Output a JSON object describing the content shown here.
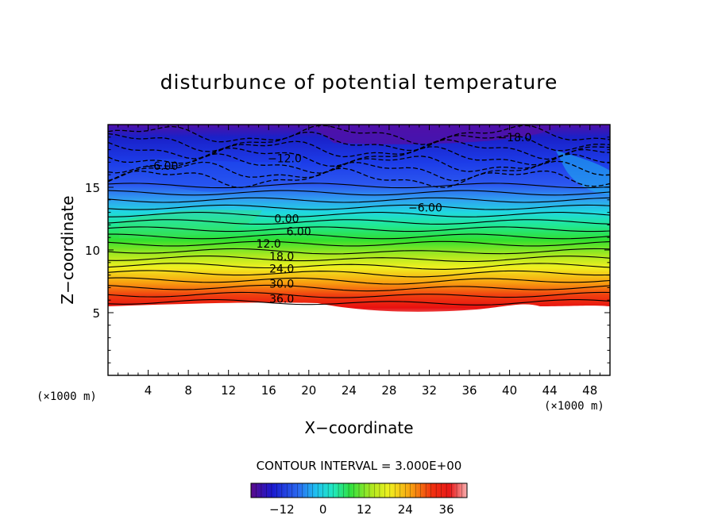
{
  "chart_data": {
    "type": "contour",
    "title": "disturbunce of potential temperature",
    "xlabel": "X−coordinate",
    "ylabel": "Z−coordinate",
    "x_unit": "(×1000 m)",
    "y_unit": "(×1000 m)",
    "xlim": [
      0,
      50
    ],
    "ylim": [
      0,
      20
    ],
    "x_ticks": [
      4,
      8,
      12,
      16,
      20,
      24,
      28,
      32,
      36,
      40,
      44,
      48
    ],
    "y_ticks": [
      5,
      10,
      15
    ],
    "contour_interval_text": "CONTOUR INTERVAL = 3.000E+00",
    "contour_interval": 3,
    "contour_labels": [
      {
        "text": "−18.0",
        "x": 40.5,
        "z": 19.0
      },
      {
        "text": "−12.0",
        "x": 17.6,
        "z": 17.3
      },
      {
        "text": "−6.00",
        "x": 5.3,
        "z": 16.7
      },
      {
        "text": "−6.00",
        "x": 31.6,
        "z": 13.4
      },
      {
        "text": "0.00",
        "x": 17.8,
        "z": 12.5
      },
      {
        "text": "6.00",
        "x": 19.0,
        "z": 11.5
      },
      {
        "text": "12.0",
        "x": 16.0,
        "z": 10.5
      },
      {
        "text": "18.0",
        "x": 17.3,
        "z": 9.5
      },
      {
        "text": "24.0",
        "x": 17.3,
        "z": 8.5
      },
      {
        "text": "30.0",
        "x": 17.3,
        "z": 7.3
      },
      {
        "text": "36.0",
        "x": 17.3,
        "z": 6.1
      }
    ],
    "colorbar": {
      "min": -21,
      "max": 42,
      "tick_values": [
        -12,
        0,
        12,
        24,
        36
      ],
      "tick_labels": [
        "−12",
        "0",
        "12",
        "24",
        "36"
      ]
    }
  }
}
